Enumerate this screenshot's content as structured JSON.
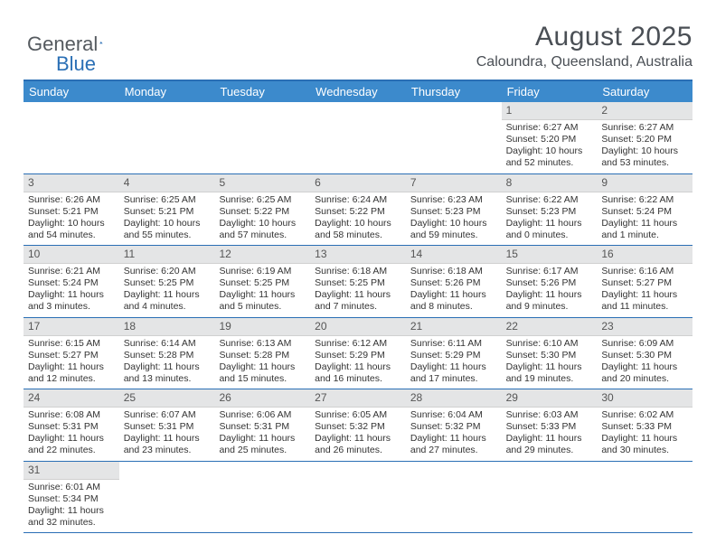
{
  "brand": {
    "part1": "General",
    "part2": "Blue"
  },
  "header": {
    "title": "August 2025",
    "location": "Caloundra, Queensland, Australia"
  },
  "colors": {
    "header_bar": "#3c8acc",
    "accent_line": "#2a6fb5",
    "daynum_bg": "#e4e5e6",
    "text": "#333333",
    "title_text": "#4a4f55"
  },
  "daysOfWeek": [
    "Sunday",
    "Monday",
    "Tuesday",
    "Wednesday",
    "Thursday",
    "Friday",
    "Saturday"
  ],
  "weeks": [
    [
      null,
      null,
      null,
      null,
      null,
      {
        "n": "1",
        "sunrise": "6:27 AM",
        "sunset": "5:20 PM",
        "daylight": "10 hours and 52 minutes."
      },
      {
        "n": "2",
        "sunrise": "6:27 AM",
        "sunset": "5:20 PM",
        "daylight": "10 hours and 53 minutes."
      }
    ],
    [
      {
        "n": "3",
        "sunrise": "6:26 AM",
        "sunset": "5:21 PM",
        "daylight": "10 hours and 54 minutes."
      },
      {
        "n": "4",
        "sunrise": "6:25 AM",
        "sunset": "5:21 PM",
        "daylight": "10 hours and 55 minutes."
      },
      {
        "n": "5",
        "sunrise": "6:25 AM",
        "sunset": "5:22 PM",
        "daylight": "10 hours and 57 minutes."
      },
      {
        "n": "6",
        "sunrise": "6:24 AM",
        "sunset": "5:22 PM",
        "daylight": "10 hours and 58 minutes."
      },
      {
        "n": "7",
        "sunrise": "6:23 AM",
        "sunset": "5:23 PM",
        "daylight": "10 hours and 59 minutes."
      },
      {
        "n": "8",
        "sunrise": "6:22 AM",
        "sunset": "5:23 PM",
        "daylight": "11 hours and 0 minutes."
      },
      {
        "n": "9",
        "sunrise": "6:22 AM",
        "sunset": "5:24 PM",
        "daylight": "11 hours and 1 minute."
      }
    ],
    [
      {
        "n": "10",
        "sunrise": "6:21 AM",
        "sunset": "5:24 PM",
        "daylight": "11 hours and 3 minutes."
      },
      {
        "n": "11",
        "sunrise": "6:20 AM",
        "sunset": "5:25 PM",
        "daylight": "11 hours and 4 minutes."
      },
      {
        "n": "12",
        "sunrise": "6:19 AM",
        "sunset": "5:25 PM",
        "daylight": "11 hours and 5 minutes."
      },
      {
        "n": "13",
        "sunrise": "6:18 AM",
        "sunset": "5:25 PM",
        "daylight": "11 hours and 7 minutes."
      },
      {
        "n": "14",
        "sunrise": "6:18 AM",
        "sunset": "5:26 PM",
        "daylight": "11 hours and 8 minutes."
      },
      {
        "n": "15",
        "sunrise": "6:17 AM",
        "sunset": "5:26 PM",
        "daylight": "11 hours and 9 minutes."
      },
      {
        "n": "16",
        "sunrise": "6:16 AM",
        "sunset": "5:27 PM",
        "daylight": "11 hours and 11 minutes."
      }
    ],
    [
      {
        "n": "17",
        "sunrise": "6:15 AM",
        "sunset": "5:27 PM",
        "daylight": "11 hours and 12 minutes."
      },
      {
        "n": "18",
        "sunrise": "6:14 AM",
        "sunset": "5:28 PM",
        "daylight": "11 hours and 13 minutes."
      },
      {
        "n": "19",
        "sunrise": "6:13 AM",
        "sunset": "5:28 PM",
        "daylight": "11 hours and 15 minutes."
      },
      {
        "n": "20",
        "sunrise": "6:12 AM",
        "sunset": "5:29 PM",
        "daylight": "11 hours and 16 minutes."
      },
      {
        "n": "21",
        "sunrise": "6:11 AM",
        "sunset": "5:29 PM",
        "daylight": "11 hours and 17 minutes."
      },
      {
        "n": "22",
        "sunrise": "6:10 AM",
        "sunset": "5:30 PM",
        "daylight": "11 hours and 19 minutes."
      },
      {
        "n": "23",
        "sunrise": "6:09 AM",
        "sunset": "5:30 PM",
        "daylight": "11 hours and 20 minutes."
      }
    ],
    [
      {
        "n": "24",
        "sunrise": "6:08 AM",
        "sunset": "5:31 PM",
        "daylight": "11 hours and 22 minutes."
      },
      {
        "n": "25",
        "sunrise": "6:07 AM",
        "sunset": "5:31 PM",
        "daylight": "11 hours and 23 minutes."
      },
      {
        "n": "26",
        "sunrise": "6:06 AM",
        "sunset": "5:31 PM",
        "daylight": "11 hours and 25 minutes."
      },
      {
        "n": "27",
        "sunrise": "6:05 AM",
        "sunset": "5:32 PM",
        "daylight": "11 hours and 26 minutes."
      },
      {
        "n": "28",
        "sunrise": "6:04 AM",
        "sunset": "5:32 PM",
        "daylight": "11 hours and 27 minutes."
      },
      {
        "n": "29",
        "sunrise": "6:03 AM",
        "sunset": "5:33 PM",
        "daylight": "11 hours and 29 minutes."
      },
      {
        "n": "30",
        "sunrise": "6:02 AM",
        "sunset": "5:33 PM",
        "daylight": "11 hours and 30 minutes."
      }
    ],
    [
      {
        "n": "31",
        "sunrise": "6:01 AM",
        "sunset": "5:34 PM",
        "daylight": "11 hours and 32 minutes."
      },
      null,
      null,
      null,
      null,
      null,
      null
    ]
  ],
  "labels": {
    "sunrise": "Sunrise: ",
    "sunset": "Sunset: ",
    "daylight": "Daylight: "
  }
}
